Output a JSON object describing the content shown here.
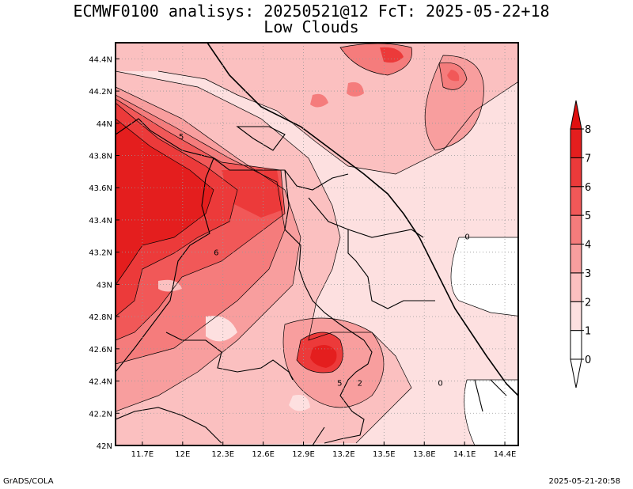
{
  "title": {
    "line1": "ECMWF0100 analisys: 20250521@12 FcT: 2025-05-22+18",
    "line2": "Low Clouds"
  },
  "footer": {
    "left": "GrADS/COLA",
    "right": "2025-05-21-20:58"
  },
  "map": {
    "lon_range": [
      11.5,
      14.5
    ],
    "lat_range": [
      42.0,
      44.5
    ],
    "grid": "dotted",
    "lon_ticks": [
      {
        "value": 11.7,
        "label": "11.7E"
      },
      {
        "value": 12.0,
        "label": "12E"
      },
      {
        "value": 12.3,
        "label": "12.3E"
      },
      {
        "value": 12.6,
        "label": "12.6E"
      },
      {
        "value": 12.9,
        "label": "12.9E"
      },
      {
        "value": 13.2,
        "label": "13.2E"
      },
      {
        "value": 13.5,
        "label": "13.5E"
      },
      {
        "value": 13.8,
        "label": "13.8E"
      },
      {
        "value": 14.1,
        "label": "14.1E"
      },
      {
        "value": 14.4,
        "label": "14.4E"
      }
    ],
    "lat_ticks": [
      {
        "value": 42.0,
        "label": "42N"
      },
      {
        "value": 42.2,
        "label": "42.2N"
      },
      {
        "value": 42.4,
        "label": "42.4N"
      },
      {
        "value": 42.6,
        "label": "42.6N"
      },
      {
        "value": 42.8,
        "label": "42.8N"
      },
      {
        "value": 43.0,
        "label": "43N"
      },
      {
        "value": 43.2,
        "label": "43.2N"
      },
      {
        "value": 43.4,
        "label": "43.4N"
      },
      {
        "value": 43.6,
        "label": "43.6N"
      },
      {
        "value": 43.8,
        "label": "43.8N"
      },
      {
        "value": 44.0,
        "label": "44N"
      },
      {
        "value": 44.2,
        "label": "44.2N"
      },
      {
        "value": 44.4,
        "label": "44.4N"
      }
    ],
    "contour_labels": [
      {
        "text": "5",
        "lon": 11.99,
        "lat": 43.92
      },
      {
        "text": "6",
        "lon": 12.25,
        "lat": 43.2
      },
      {
        "text": "0",
        "lon": 14.12,
        "lat": 43.3
      },
      {
        "text": "5",
        "lon": 13.17,
        "lat": 42.39
      },
      {
        "text": "2",
        "lon": 13.32,
        "lat": 42.39
      },
      {
        "text": "0",
        "lon": 13.92,
        "lat": 42.39
      }
    ]
  },
  "colorbar": {
    "levels": [
      "0",
      "1",
      "2",
      "3",
      "4",
      "5",
      "6",
      "7",
      "8"
    ],
    "colors": [
      "#ffffff",
      "#fde0e0",
      "#fbc0c0",
      "#f89e9e",
      "#f57c7c",
      "#f15858",
      "#ec3a3a",
      "#e41e1e"
    ]
  }
}
